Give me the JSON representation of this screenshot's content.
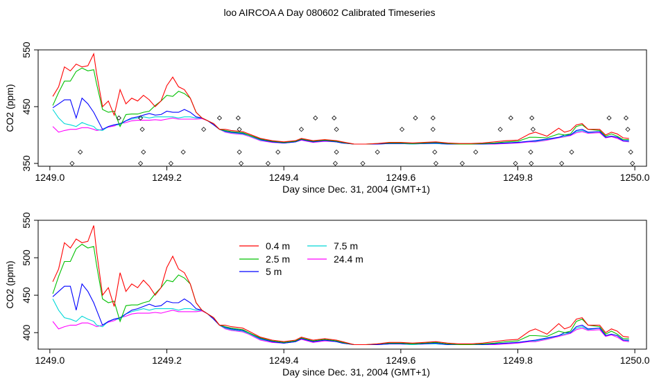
{
  "page_title": "loo AIRCOA A  Day 080602  Calibrated Timeseries",
  "chart_data": [
    {
      "type": "line",
      "xlabel": "Day since Dec. 31, 2004 (GMT+1)",
      "ylabel": "CO2 (ppm)",
      "xlim": [
        1248.98,
        1250.02
      ],
      "ylim": [
        345,
        550
      ],
      "xticks": [
        "1249.0",
        "1249.2",
        "1249.4",
        "1249.6",
        "1249.8",
        "1250.0"
      ],
      "xtick_values": [
        1249.0,
        1249.2,
        1249.4,
        1249.6,
        1249.8,
        1250.0
      ],
      "yticks": [
        "350",
        "450",
        "550"
      ],
      "ytick_values": [
        350,
        450,
        550
      ],
      "grid": false,
      "series": [
        {
          "name": "0.4 m",
          "color": "#ff0000",
          "x": [
            1249.005,
            1249.015,
            1249.025,
            1249.035,
            1249.045,
            1249.055,
            1249.065,
            1249.075,
            1249.08,
            1249.09,
            1249.1,
            1249.11,
            1249.12,
            1249.13,
            1249.14,
            1249.15,
            1249.16,
            1249.17,
            1249.18,
            1249.19,
            1249.2,
            1249.21,
            1249.22,
            1249.23,
            1249.24,
            1249.25,
            1249.26,
            1249.27,
            1249.28,
            1249.29,
            1249.3,
            1249.31,
            1249.32,
            1249.33,
            1249.34,
            1249.36,
            1249.38,
            1249.4,
            1249.42,
            1249.43,
            1249.45,
            1249.47,
            1249.49,
            1249.5,
            1249.52,
            1249.54,
            1249.56,
            1249.58,
            1249.6,
            1249.62,
            1249.64,
            1249.66,
            1249.68,
            1249.7,
            1249.72,
            1249.74,
            1249.76,
            1249.78,
            1249.8,
            1249.82,
            1249.83,
            1249.85,
            1249.87,
            1249.88,
            1249.89,
            1249.9,
            1249.91,
            1249.92,
            1249.94,
            1249.95,
            1249.96,
            1249.97,
            1249.98,
            1249.99
          ],
          "y": [
            468,
            485,
            520,
            513,
            525,
            520,
            522,
            543,
            508,
            450,
            460,
            435,
            480,
            455,
            465,
            460,
            470,
            462,
            450,
            460,
            487,
            502,
            485,
            480,
            465,
            440,
            430,
            425,
            420,
            410,
            410,
            408,
            407,
            406,
            402,
            394,
            390,
            388,
            390,
            394,
            390,
            392,
            390,
            388,
            384,
            384,
            385,
            387,
            387,
            386,
            387,
            388,
            386,
            385,
            385,
            386,
            388,
            390,
            391,
            402,
            405,
            398,
            412,
            405,
            408,
            418,
            420,
            410,
            410,
            400,
            405,
            402,
            395,
            394
          ]
        },
        {
          "name": "2.5 m",
          "color": "#00c000",
          "x": [
            1249.005,
            1249.015,
            1249.025,
            1249.035,
            1249.045,
            1249.055,
            1249.065,
            1249.075,
            1249.08,
            1249.09,
            1249.1,
            1249.11,
            1249.12,
            1249.13,
            1249.14,
            1249.15,
            1249.16,
            1249.17,
            1249.18,
            1249.19,
            1249.2,
            1249.21,
            1249.22,
            1249.23,
            1249.24,
            1249.25,
            1249.26,
            1249.27,
            1249.28,
            1249.29,
            1249.3,
            1249.31,
            1249.32,
            1249.33,
            1249.34,
            1249.36,
            1249.38,
            1249.4,
            1249.42,
            1249.43,
            1249.45,
            1249.47,
            1249.49,
            1249.5,
            1249.52,
            1249.54,
            1249.56,
            1249.58,
            1249.6,
            1249.62,
            1249.64,
            1249.66,
            1249.68,
            1249.7,
            1249.72,
            1249.74,
            1249.76,
            1249.78,
            1249.8,
            1249.82,
            1249.83,
            1249.85,
            1249.87,
            1249.88,
            1249.89,
            1249.9,
            1249.91,
            1249.92,
            1249.94,
            1249.95,
            1249.96,
            1249.97,
            1249.98,
            1249.99
          ],
          "y": [
            452,
            475,
            495,
            495,
            512,
            518,
            513,
            515,
            490,
            445,
            440,
            442,
            415,
            436,
            437,
            437,
            440,
            442,
            452,
            460,
            470,
            468,
            477,
            473,
            465,
            440,
            430,
            425,
            420,
            410,
            408,
            406,
            405,
            404,
            400,
            393,
            389,
            387,
            389,
            393,
            389,
            391,
            389,
            387,
            384,
            384,
            385,
            386,
            386,
            385,
            386,
            387,
            385,
            384,
            384,
            385,
            386,
            388,
            389,
            396,
            396,
            395,
            402,
            400,
            402,
            415,
            418,
            410,
            408,
            398,
            402,
            398,
            392,
            392
          ]
        },
        {
          "name": "5 m",
          "color": "#0000ff",
          "x": [
            1249.005,
            1249.015,
            1249.025,
            1249.035,
            1249.045,
            1249.055,
            1249.065,
            1249.075,
            1249.08,
            1249.09,
            1249.1,
            1249.11,
            1249.12,
            1249.13,
            1249.14,
            1249.15,
            1249.16,
            1249.17,
            1249.18,
            1249.19,
            1249.2,
            1249.21,
            1249.22,
            1249.23,
            1249.24,
            1249.25,
            1249.26,
            1249.27,
            1249.28,
            1249.29,
            1249.3,
            1249.31,
            1249.32,
            1249.33,
            1249.34,
            1249.36,
            1249.38,
            1249.4,
            1249.42,
            1249.43,
            1249.45,
            1249.47,
            1249.49,
            1249.5,
            1249.52,
            1249.54,
            1249.56,
            1249.58,
            1249.6,
            1249.62,
            1249.64,
            1249.66,
            1249.68,
            1249.7,
            1249.72,
            1249.74,
            1249.76,
            1249.78,
            1249.8,
            1249.82,
            1249.83,
            1249.85,
            1249.87,
            1249.88,
            1249.89,
            1249.9,
            1249.91,
            1249.92,
            1249.94,
            1249.95,
            1249.96,
            1249.97,
            1249.98,
            1249.99
          ],
          "y": [
            448,
            455,
            462,
            462,
            430,
            465,
            455,
            440,
            430,
            410,
            415,
            418,
            420,
            425,
            430,
            432,
            435,
            438,
            435,
            436,
            442,
            440,
            440,
            445,
            440,
            432,
            430,
            425,
            418,
            410,
            407,
            405,
            404,
            403,
            400,
            392,
            388,
            386,
            388,
            392,
            388,
            390,
            388,
            386,
            384,
            384,
            384,
            385,
            385,
            385,
            385,
            386,
            384,
            384,
            384,
            384,
            385,
            386,
            387,
            389,
            390,
            393,
            396,
            400,
            400,
            408,
            410,
            405,
            406,
            396,
            398,
            396,
            390,
            390
          ]
        },
        {
          "name": "7.5 m",
          "color": "#00d8d8",
          "x": [
            1249.005,
            1249.015,
            1249.025,
            1249.035,
            1249.045,
            1249.055,
            1249.065,
            1249.075,
            1249.08,
            1249.09,
            1249.1,
            1249.11,
            1249.12,
            1249.13,
            1249.14,
            1249.15,
            1249.16,
            1249.17,
            1249.18,
            1249.19,
            1249.2,
            1249.21,
            1249.22,
            1249.23,
            1249.24,
            1249.25,
            1249.26,
            1249.27,
            1249.28,
            1249.29,
            1249.3,
            1249.31,
            1249.32,
            1249.33,
            1249.34,
            1249.36,
            1249.38,
            1249.4,
            1249.42,
            1249.43,
            1249.45,
            1249.47,
            1249.49,
            1249.5,
            1249.52,
            1249.54,
            1249.56,
            1249.58,
            1249.6,
            1249.62,
            1249.64,
            1249.66,
            1249.68,
            1249.7,
            1249.72,
            1249.74,
            1249.76,
            1249.78,
            1249.8,
            1249.82,
            1249.83,
            1249.85,
            1249.87,
            1249.88,
            1249.89,
            1249.9,
            1249.91,
            1249.92,
            1249.94,
            1249.95,
            1249.96,
            1249.97,
            1249.98,
            1249.99
          ],
          "y": [
            445,
            430,
            420,
            418,
            415,
            422,
            418,
            415,
            410,
            408,
            415,
            418,
            418,
            425,
            428,
            430,
            432,
            430,
            432,
            432,
            432,
            432,
            430,
            432,
            432,
            430,
            430,
            425,
            418,
            410,
            406,
            404,
            403,
            402,
            399,
            391,
            388,
            386,
            388,
            392,
            388,
            390,
            388,
            386,
            384,
            384,
            384,
            385,
            385,
            384,
            385,
            385,
            384,
            384,
            384,
            384,
            385,
            386,
            387,
            389,
            389,
            392,
            396,
            398,
            400,
            406,
            408,
            404,
            406,
            396,
            398,
            396,
            390,
            389
          ]
        },
        {
          "name": "24.4 m",
          "color": "#ff00ff",
          "x": [
            1249.005,
            1249.015,
            1249.025,
            1249.035,
            1249.045,
            1249.055,
            1249.065,
            1249.075,
            1249.08,
            1249.09,
            1249.1,
            1249.11,
            1249.12,
            1249.13,
            1249.14,
            1249.15,
            1249.16,
            1249.17,
            1249.18,
            1249.19,
            1249.2,
            1249.21,
            1249.22,
            1249.23,
            1249.24,
            1249.25,
            1249.26,
            1249.27,
            1249.28,
            1249.29,
            1249.3,
            1249.31,
            1249.32,
            1249.33,
            1249.34,
            1249.36,
            1249.38,
            1249.4,
            1249.42,
            1249.43,
            1249.45,
            1249.47,
            1249.49,
            1249.5,
            1249.52,
            1249.54,
            1249.56,
            1249.58,
            1249.6,
            1249.62,
            1249.64,
            1249.66,
            1249.68,
            1249.7,
            1249.72,
            1249.74,
            1249.76,
            1249.78,
            1249.8,
            1249.82,
            1249.83,
            1249.85,
            1249.87,
            1249.88,
            1249.89,
            1249.9,
            1249.91,
            1249.92,
            1249.94,
            1249.95,
            1249.96,
            1249.97,
            1249.98,
            1249.99
          ],
          "y": [
            415,
            405,
            408,
            410,
            410,
            413,
            413,
            410,
            408,
            410,
            414,
            416,
            420,
            422,
            425,
            426,
            426,
            426,
            427,
            426,
            428,
            430,
            428,
            428,
            428,
            428,
            429,
            425,
            418,
            410,
            405,
            403,
            402,
            401,
            398,
            390,
            387,
            386,
            388,
            391,
            387,
            389,
            388,
            386,
            384,
            384,
            384,
            385,
            385,
            384,
            385,
            385,
            384,
            384,
            384,
            384,
            384,
            385,
            386,
            388,
            388,
            391,
            395,
            397,
            399,
            404,
            406,
            403,
            404,
            395,
            397,
            394,
            389,
            388
          ]
        }
      ],
      "markers": {
        "shape": "diamond-open",
        "x": [
          1249.038,
          1249.052,
          1249.118,
          1249.155,
          1249.16,
          1249.158,
          1249.155,
          1249.207,
          1249.228,
          1249.263,
          1249.29,
          1249.322,
          1249.324,
          1249.324,
          1249.327,
          1249.373,
          1249.39,
          1249.43,
          1249.454,
          1249.488,
          1249.49,
          1249.49,
          1249.486,
          1249.535,
          1249.56,
          1249.602,
          1249.625,
          1249.655,
          1249.655,
          1249.658,
          1249.66,
          1249.705,
          1249.728,
          1249.77,
          1249.788,
          1249.796,
          1249.822,
          1249.826,
          1249.824,
          1249.823,
          1249.875,
          1249.892,
          1249.956,
          1249.985,
          1249.988,
          1249.993,
          1249.996
        ],
        "y": [
          350,
          370,
          430,
          350,
          370,
          410,
          430,
          350,
          370,
          410,
          430,
          430,
          410,
          370,
          350,
          350,
          370,
          410,
          430,
          350,
          370,
          410,
          430,
          350,
          370,
          410,
          430,
          430,
          410,
          370,
          350,
          350,
          370,
          410,
          430,
          350,
          370,
          410,
          430,
          350,
          350,
          370,
          430,
          430,
          410,
          370,
          350
        ]
      }
    },
    {
      "type": "line",
      "xlabel": "Day since Dec. 31, 2004 (GMT+1)",
      "ylabel": "CO2 (ppm)",
      "xlim": [
        1248.98,
        1250.02
      ],
      "ylim": [
        378,
        550
      ],
      "xticks": [
        "1249.0",
        "1249.2",
        "1249.4",
        "1249.6",
        "1249.8",
        "1250.0"
      ],
      "xtick_values": [
        1249.0,
        1249.2,
        1249.4,
        1249.6,
        1249.8,
        1250.0
      ],
      "yticks": [
        "400",
        "450",
        "500",
        "550"
      ],
      "ytick_values": [
        400,
        450,
        500,
        550
      ],
      "grid": false,
      "legend": {
        "placement": "top-center",
        "columns": 2
      },
      "series_ref": "same as first panel"
    }
  ]
}
